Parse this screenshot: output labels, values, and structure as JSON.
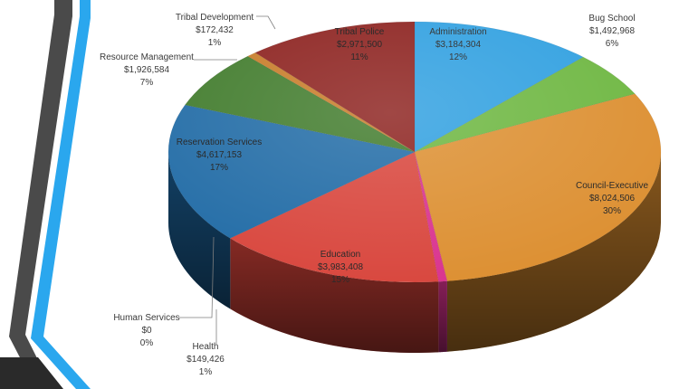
{
  "chart_data": {
    "type": "pie",
    "title": "",
    "legend": "none",
    "slices": [
      {
        "label": "Administration",
        "amount": "$3,184,304",
        "percent": "12%",
        "value": 3184304,
        "color": "#2e9fe0"
      },
      {
        "label": "Bug School",
        "amount": "$1,492,968",
        "percent": "6%",
        "value": 1492968,
        "color": "#6cb63f"
      },
      {
        "label": "Council-Executive",
        "amount": "$8,024,506",
        "percent": "30%",
        "value": 8024506,
        "color": "#dc8e2f"
      },
      {
        "label": "Health",
        "amount": "$149,426",
        "percent": "1%",
        "value": 149426,
        "color": "#d9308d"
      },
      {
        "label": "Human Services",
        "amount": "$0",
        "percent": "0%",
        "value": 0,
        "color": "#9b59b6"
      },
      {
        "label": "Education",
        "amount": "$3,983,408",
        "percent": "15%",
        "value": 3983408,
        "color": "#d8443b"
      },
      {
        "label": "Reservation Services",
        "amount": "$4,617,153",
        "percent": "17%",
        "value": 4617153,
        "color": "#1f6aa5"
      },
      {
        "label": "Resource Management",
        "amount": "$1,926,584",
        "percent": "7%",
        "value": 1926584,
        "color": "#3f7a2a"
      },
      {
        "label": "Tribal Development",
        "amount": "$172,432",
        "percent": "1%",
        "value": 172432,
        "color": "#c77a26"
      },
      {
        "label": "Tribal Police",
        "amount": "$2,971,500",
        "percent": "11%",
        "value": 2971500,
        "color": "#8b1f1c"
      }
    ]
  },
  "colors": {
    "stripe_gray": "#4a4a4a",
    "stripe_blue": "#2aa7ee",
    "leader_line": "#7f7f7f",
    "label_text": "#3a3a3a"
  }
}
